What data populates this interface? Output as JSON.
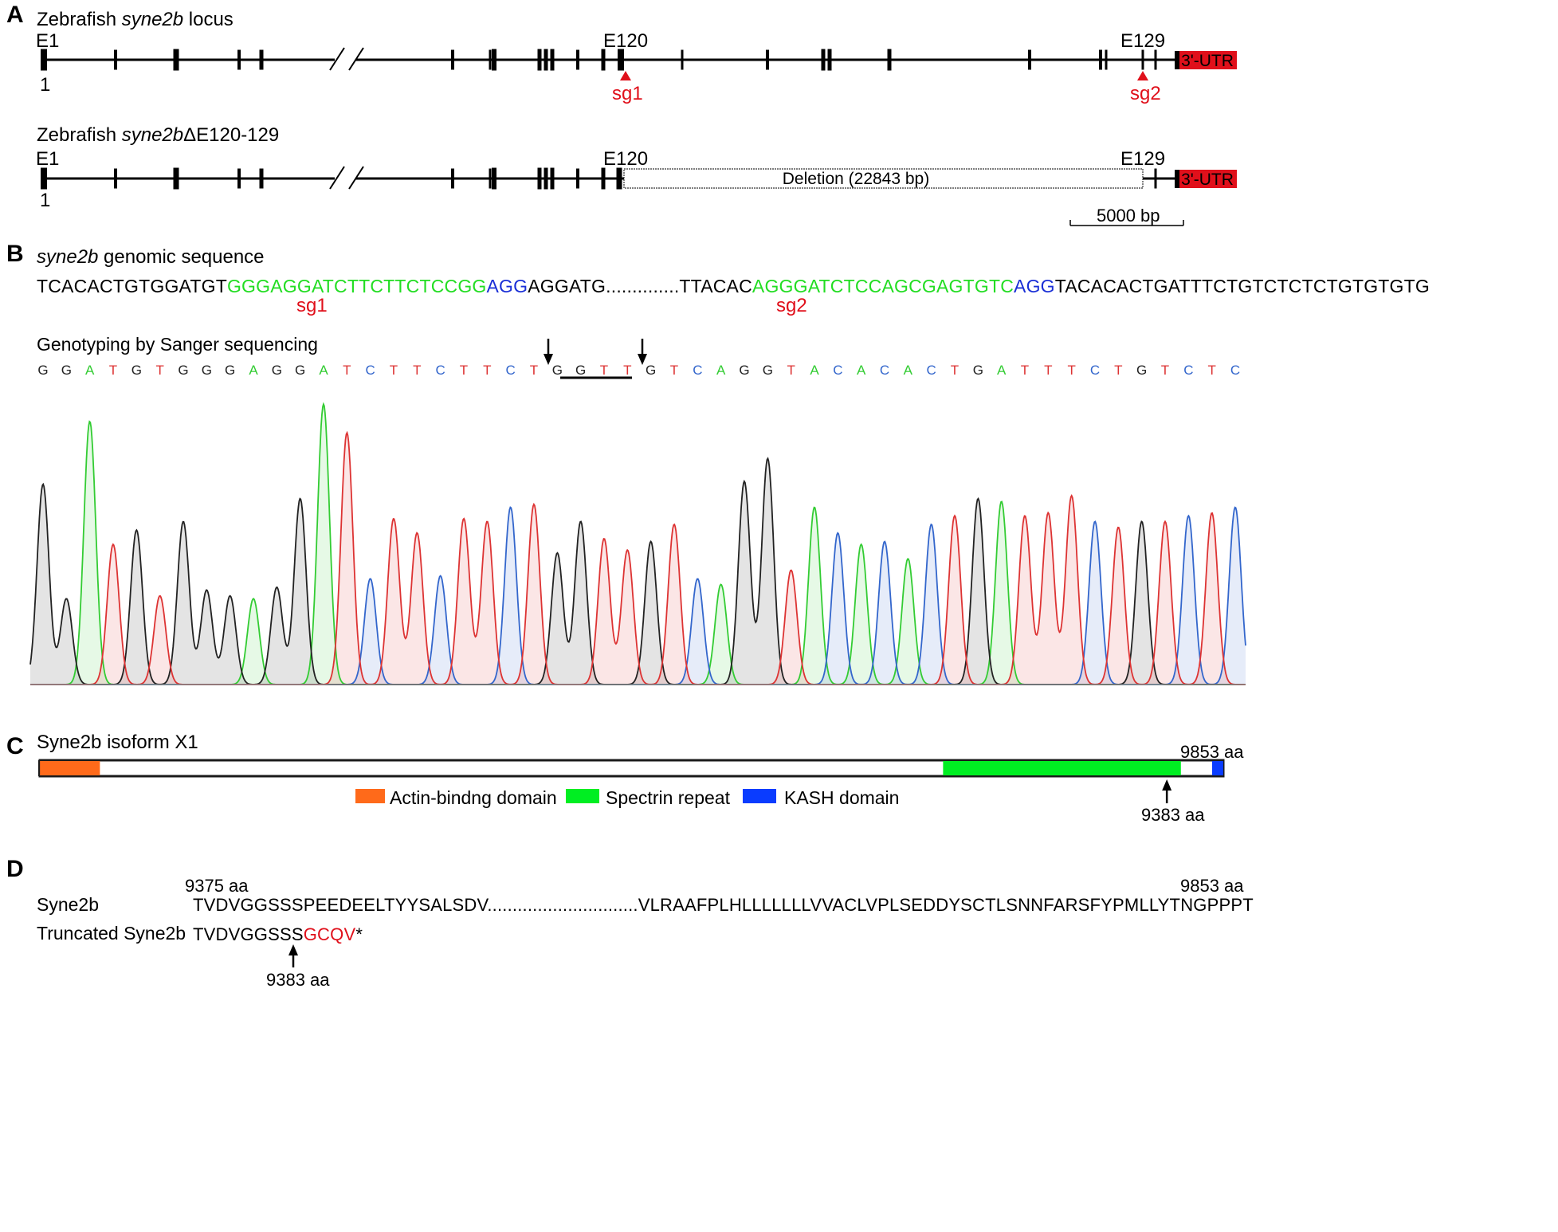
{
  "panelA": {
    "letter": "A",
    "locus_title_prefix": "Zebrafish ",
    "locus_title_gene": "syne2b",
    "locus_title_suffix": " locus",
    "e1": "E1",
    "e120": "E120",
    "e129": "E129",
    "pos1": "1",
    "utr": "3'-UTR",
    "sg1": "sg1",
    "sg2": "sg2",
    "del_title_prefix": "Zebrafish ",
    "del_title_gene": "syne2b",
    "del_title_suffix": "ΔE120-129",
    "deletion_label": "Deletion (22843 bp)",
    "scale_label": "5000 bp",
    "colors": {
      "utr": "#e0101b",
      "sg": "#e0101b"
    }
  },
  "panelB": {
    "letter": "B",
    "genomic_title_gene": "syne2b",
    "genomic_title_suffix": " genomic sequence",
    "seq_part1": "TCACACTGTGGATGT",
    "seq_sg1_green": "GGGAGGATCTTCTTCTCCGG",
    "seq_sg1_pam": "AGG",
    "seq_part2": "AGGATG..............TTACAC",
    "seq_sg2_green": "AGGGATCTCCAGCGAGTGTC",
    "seq_sg2_pam": "AGG",
    "seq_part3": "TACACACTGATTTCTGTCTCTCTGTGTGTG",
    "sg1": "sg1",
    "sg2": "sg2",
    "genotyping_title": "Genotyping by Sanger sequencing",
    "read_bases": "GGATGTGGGAGGATCTTCTTCTGGTTGTCAGGTACACACTGATTTCTGTCTC",
    "base_colors": {
      "A": "#33cc33",
      "C": "#3366cc",
      "G": "#222222",
      "T": "#dd3333"
    },
    "chromatogram_peaks": [
      0.7,
      0.3,
      0.92,
      0.49,
      0.54,
      0.31,
      0.57,
      0.33,
      0.31,
      0.3,
      0.34,
      0.65,
      0.98,
      0.88,
      0.37,
      0.58,
      0.53,
      0.38,
      0.58,
      0.57,
      0.62,
      0.63,
      0.46,
      0.57,
      0.51,
      0.47,
      0.5,
      0.56,
      0.37,
      0.35,
      0.71,
      0.79,
      0.4,
      0.62,
      0.53,
      0.49,
      0.5,
      0.44,
      0.56,
      0.59,
      0.65,
      0.64,
      0.59,
      0.6,
      0.66,
      0.57,
      0.55,
      0.57,
      0.57,
      0.59,
      0.6,
      0.62
    ]
  },
  "panelC": {
    "letter": "C",
    "title": "Syne2b isoform X1",
    "end_label": "9853 aa",
    "arrow_label": "9383 aa",
    "protein_length": 9853,
    "actin_range": [
      1,
      500
    ],
    "spectrin_range": [
      7520,
      9500
    ],
    "kash_range": [
      9760,
      9853
    ],
    "truncation_pos": 9383,
    "legend": [
      {
        "label": "Actin-bindng domain",
        "color": "#ff6a1a"
      },
      {
        "label": "Spectrin repeat",
        "color": "#00ee22"
      },
      {
        "label": "KASH domain",
        "color": "#0a3cff"
      }
    ]
  },
  "panelD": {
    "letter": "D",
    "start_label": "9375 aa",
    "end_label": "9853 aa",
    "row1_name": "Syne2b",
    "row1_seq": "TVDVGGSSSPEEDEELTYYSALSDV..............................VLRAAFPLHLLLLLLLVVACLVPLSEDDYSCTLSNNFARSFYPMLLYTNGPPPT",
    "row2_name": "Truncated Syne2b",
    "row2_seq_black": "TVDVGGSSS",
    "row2_seq_red": "GCQV",
    "row2_stop": "*",
    "arrow_label": "9383 aa"
  }
}
